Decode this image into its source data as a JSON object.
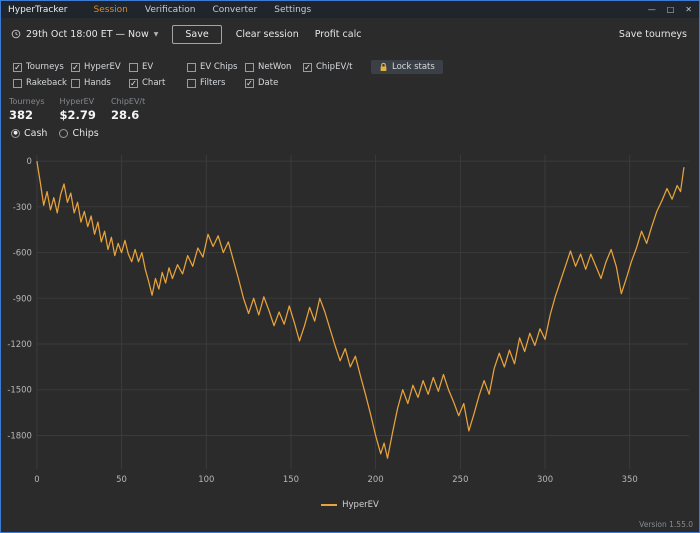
{
  "titlebar": {
    "app_title": "HyperTracker",
    "menus": [
      {
        "label": "Session",
        "active": true
      },
      {
        "label": "Verification",
        "active": false
      },
      {
        "label": "Converter",
        "active": false
      },
      {
        "label": "Settings",
        "active": false
      }
    ],
    "window_controls": {
      "minimize": "—",
      "maximize": "□",
      "close": "✕"
    }
  },
  "toolbar": {
    "date_range": "29th Oct 18:00 ET — Now",
    "dropdown_caret": "▼",
    "save_label": "Save",
    "clear_session_label": "Clear session",
    "profit_calc_label": "Profit calc",
    "save_tourneys_label": "Save tourneys"
  },
  "filters": {
    "row1": [
      {
        "label": "Tourneys",
        "mark": "✓"
      },
      {
        "label": "HyperEV",
        "mark": "✓"
      },
      {
        "label": "EV",
        "mark": ""
      },
      {
        "label": "EV Chips",
        "mark": ""
      },
      {
        "label": "NetWon",
        "mark": ""
      },
      {
        "label": "ChipEV/t",
        "mark": "✓"
      }
    ],
    "row2": [
      {
        "label": "Rakeback",
        "mark": ""
      },
      {
        "label": "Hands",
        "mark": ""
      },
      {
        "label": "Chart",
        "mark": "✓"
      },
      {
        "label": "Filters",
        "mark": ""
      },
      {
        "label": "Date",
        "mark": "✓"
      }
    ],
    "lock_stats_label": "Lock stats"
  },
  "stats": [
    {
      "label": "Tourneys",
      "value": "382"
    },
    {
      "label": "HyperEV",
      "value": "$2.79"
    },
    {
      "label": "ChipEV/t",
      "value": "28.6"
    }
  ],
  "mode": {
    "options": [
      {
        "label": "Cash",
        "dot": "●",
        "selected": true
      },
      {
        "label": "Chips",
        "dot": "",
        "selected": false
      }
    ]
  },
  "legend": {
    "hyperev": "HyperEV"
  },
  "version": "Version 1.55.0",
  "colors": {
    "accent": "#e8a33b",
    "session_active": "#d98b2b",
    "lock": "#e8b33b",
    "window_border": "#3d7bd5",
    "background": "#2b2b2b",
    "titlebar": "#20252c",
    "grid": "#3b3b3b"
  },
  "chart_data": {
    "type": "line",
    "title": "",
    "xlabel": "",
    "ylabel": "",
    "xlim": [
      0,
      385
    ],
    "ylim": [
      -2020,
      40
    ],
    "x_ticks": [
      0,
      50,
      100,
      150,
      200,
      250,
      300,
      350
    ],
    "y_ticks": [
      0,
      -300,
      -600,
      -900,
      -1200,
      -1500,
      -1800
    ],
    "grid": true,
    "legend_position": "bottom",
    "series": [
      {
        "name": "HyperEV",
        "color": "#e8a33b",
        "points": [
          [
            0,
            0
          ],
          [
            2,
            -140
          ],
          [
            4,
            -290
          ],
          [
            6,
            -200
          ],
          [
            8,
            -320
          ],
          [
            10,
            -240
          ],
          [
            12,
            -340
          ],
          [
            14,
            -220
          ],
          [
            16,
            -150
          ],
          [
            18,
            -270
          ],
          [
            20,
            -210
          ],
          [
            22,
            -340
          ],
          [
            24,
            -270
          ],
          [
            26,
            -400
          ],
          [
            28,
            -330
          ],
          [
            30,
            -430
          ],
          [
            32,
            -360
          ],
          [
            34,
            -480
          ],
          [
            36,
            -400
          ],
          [
            38,
            -530
          ],
          [
            40,
            -460
          ],
          [
            42,
            -580
          ],
          [
            44,
            -500
          ],
          [
            46,
            -620
          ],
          [
            48,
            -540
          ],
          [
            50,
            -600
          ],
          [
            52,
            -520
          ],
          [
            54,
            -610
          ],
          [
            56,
            -660
          ],
          [
            58,
            -580
          ],
          [
            60,
            -660
          ],
          [
            62,
            -600
          ],
          [
            64,
            -710
          ],
          [
            66,
            -790
          ],
          [
            68,
            -880
          ],
          [
            70,
            -770
          ],
          [
            72,
            -840
          ],
          [
            74,
            -730
          ],
          [
            76,
            -800
          ],
          [
            78,
            -700
          ],
          [
            80,
            -770
          ],
          [
            83,
            -680
          ],
          [
            86,
            -740
          ],
          [
            89,
            -620
          ],
          [
            92,
            -690
          ],
          [
            95,
            -570
          ],
          [
            98,
            -630
          ],
          [
            101,
            -480
          ],
          [
            104,
            -560
          ],
          [
            107,
            -490
          ],
          [
            110,
            -600
          ],
          [
            113,
            -530
          ],
          [
            116,
            -650
          ],
          [
            119,
            -770
          ],
          [
            122,
            -900
          ],
          [
            125,
            -1000
          ],
          [
            128,
            -900
          ],
          [
            131,
            -1010
          ],
          [
            134,
            -890
          ],
          [
            137,
            -980
          ],
          [
            140,
            -1080
          ],
          [
            143,
            -990
          ],
          [
            146,
            -1070
          ],
          [
            149,
            -950
          ],
          [
            152,
            -1060
          ],
          [
            155,
            -1180
          ],
          [
            158,
            -1080
          ],
          [
            161,
            -960
          ],
          [
            164,
            -1050
          ],
          [
            167,
            -900
          ],
          [
            170,
            -990
          ],
          [
            173,
            -1100
          ],
          [
            176,
            -1210
          ],
          [
            179,
            -1310
          ],
          [
            182,
            -1230
          ],
          [
            185,
            -1350
          ],
          [
            188,
            -1280
          ],
          [
            191,
            -1410
          ],
          [
            194,
            -1530
          ],
          [
            197,
            -1660
          ],
          [
            200,
            -1800
          ],
          [
            203,
            -1920
          ],
          [
            205,
            -1850
          ],
          [
            207,
            -1950
          ],
          [
            210,
            -1780
          ],
          [
            213,
            -1620
          ],
          [
            216,
            -1500
          ],
          [
            219,
            -1590
          ],
          [
            222,
            -1470
          ],
          [
            225,
            -1550
          ],
          [
            228,
            -1440
          ],
          [
            231,
            -1530
          ],
          [
            234,
            -1420
          ],
          [
            237,
            -1510
          ],
          [
            240,
            -1400
          ],
          [
            243,
            -1500
          ],
          [
            246,
            -1580
          ],
          [
            249,
            -1670
          ],
          [
            252,
            -1590
          ],
          [
            255,
            -1770
          ],
          [
            258,
            -1660
          ],
          [
            261,
            -1540
          ],
          [
            264,
            -1440
          ],
          [
            267,
            -1530
          ],
          [
            270,
            -1360
          ],
          [
            273,
            -1260
          ],
          [
            276,
            -1350
          ],
          [
            279,
            -1240
          ],
          [
            282,
            -1330
          ],
          [
            285,
            -1160
          ],
          [
            288,
            -1250
          ],
          [
            291,
            -1130
          ],
          [
            294,
            -1210
          ],
          [
            297,
            -1100
          ],
          [
            300,
            -1170
          ],
          [
            303,
            -1010
          ],
          [
            306,
            -890
          ],
          [
            309,
            -790
          ],
          [
            312,
            -690
          ],
          [
            315,
            -590
          ],
          [
            318,
            -690
          ],
          [
            321,
            -610
          ],
          [
            324,
            -710
          ],
          [
            327,
            -610
          ],
          [
            330,
            -690
          ],
          [
            333,
            -770
          ],
          [
            336,
            -660
          ],
          [
            339,
            -580
          ],
          [
            342,
            -690
          ],
          [
            345,
            -870
          ],
          [
            348,
            -770
          ],
          [
            351,
            -660
          ],
          [
            354,
            -570
          ],
          [
            357,
            -460
          ],
          [
            360,
            -540
          ],
          [
            363,
            -430
          ],
          [
            366,
            -330
          ],
          [
            369,
            -260
          ],
          [
            372,
            -180
          ],
          [
            375,
            -250
          ],
          [
            378,
            -160
          ],
          [
            380,
            -200
          ],
          [
            382,
            -40
          ]
        ]
      }
    ]
  }
}
